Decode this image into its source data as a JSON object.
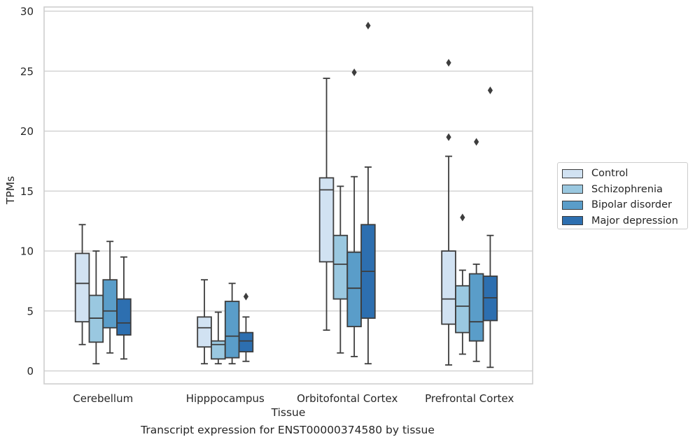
{
  "caption": "Transcript expression for ENST00000374580 by tissue",
  "chart_data": {
    "type": "boxplot",
    "xlabel": "Tissue",
    "ylabel": "TPMs",
    "ylim": [
      -0.9,
      30.3
    ],
    "yticks": [
      0,
      5,
      10,
      15,
      20,
      25,
      30
    ],
    "grid": true,
    "legend_position": "outside-right",
    "categories": [
      "Cerebellum",
      "Hipppocampus",
      "Orbitofontal Cortex",
      "Prefrontal Cortex"
    ],
    "series": [
      {
        "name": "Control",
        "color": "#d1e2f2",
        "boxes": [
          {
            "whisker_low": 2.2,
            "q1": 4.1,
            "median": 7.3,
            "q3": 9.8,
            "whisker_high": 12.2,
            "outliers": []
          },
          {
            "whisker_low": 0.6,
            "q1": 2.0,
            "median": 3.6,
            "q3": 4.5,
            "whisker_high": 7.6,
            "outliers": []
          },
          {
            "whisker_low": 3.4,
            "q1": 9.1,
            "median": 15.1,
            "q3": 16.1,
            "whisker_high": 24.4,
            "outliers": []
          },
          {
            "whisker_low": 0.5,
            "q1": 3.9,
            "median": 6.0,
            "q3": 10.0,
            "whisker_high": 17.9,
            "outliers": [
              19.5,
              25.7
            ]
          }
        ]
      },
      {
        "name": "Schizophrenia",
        "color": "#9ac8e0",
        "boxes": [
          {
            "whisker_low": 0.6,
            "q1": 2.4,
            "median": 4.4,
            "q3": 6.3,
            "whisker_high": 10.0,
            "outliers": []
          },
          {
            "whisker_low": 0.6,
            "q1": 1.0,
            "median": 2.2,
            "q3": 2.5,
            "whisker_high": 4.9,
            "outliers": []
          },
          {
            "whisker_low": 1.5,
            "q1": 6.0,
            "median": 8.9,
            "q3": 11.3,
            "whisker_high": 15.4,
            "outliers": []
          },
          {
            "whisker_low": 1.4,
            "q1": 3.2,
            "median": 5.4,
            "q3": 7.1,
            "whisker_high": 8.4,
            "outliers": [
              12.8
            ]
          }
        ]
      },
      {
        "name": "Bipolar disorder",
        "color": "#5a9dc9",
        "boxes": [
          {
            "whisker_low": 1.5,
            "q1": 3.6,
            "median": 5.0,
            "q3": 7.6,
            "whisker_high": 10.8,
            "outliers": []
          },
          {
            "whisker_low": 0.6,
            "q1": 1.1,
            "median": 2.9,
            "q3": 5.8,
            "whisker_high": 7.3,
            "outliers": []
          },
          {
            "whisker_low": 1.2,
            "q1": 3.7,
            "median": 6.9,
            "q3": 9.9,
            "whisker_high": 16.2,
            "outliers": [
              24.9
            ]
          },
          {
            "whisker_low": 0.8,
            "q1": 2.5,
            "median": 4.1,
            "q3": 8.1,
            "whisker_high": 8.9,
            "outliers": [
              19.1
            ]
          }
        ]
      },
      {
        "name": "Major depression",
        "color": "#2d6fb0",
        "boxes": [
          {
            "whisker_low": 1.0,
            "q1": 3.0,
            "median": 4.0,
            "q3": 6.0,
            "whisker_high": 9.5,
            "outliers": []
          },
          {
            "whisker_low": 0.8,
            "q1": 1.6,
            "median": 2.5,
            "q3": 3.2,
            "whisker_high": 4.5,
            "outliers": [
              6.2
            ]
          },
          {
            "whisker_low": 0.6,
            "q1": 4.4,
            "median": 8.3,
            "q3": 12.2,
            "whisker_high": 17.0,
            "outliers": [
              28.8
            ]
          },
          {
            "whisker_low": 0.3,
            "q1": 4.2,
            "median": 6.1,
            "q3": 7.9,
            "whisker_high": 11.3,
            "outliers": [
              23.4
            ]
          }
        ]
      }
    ]
  }
}
